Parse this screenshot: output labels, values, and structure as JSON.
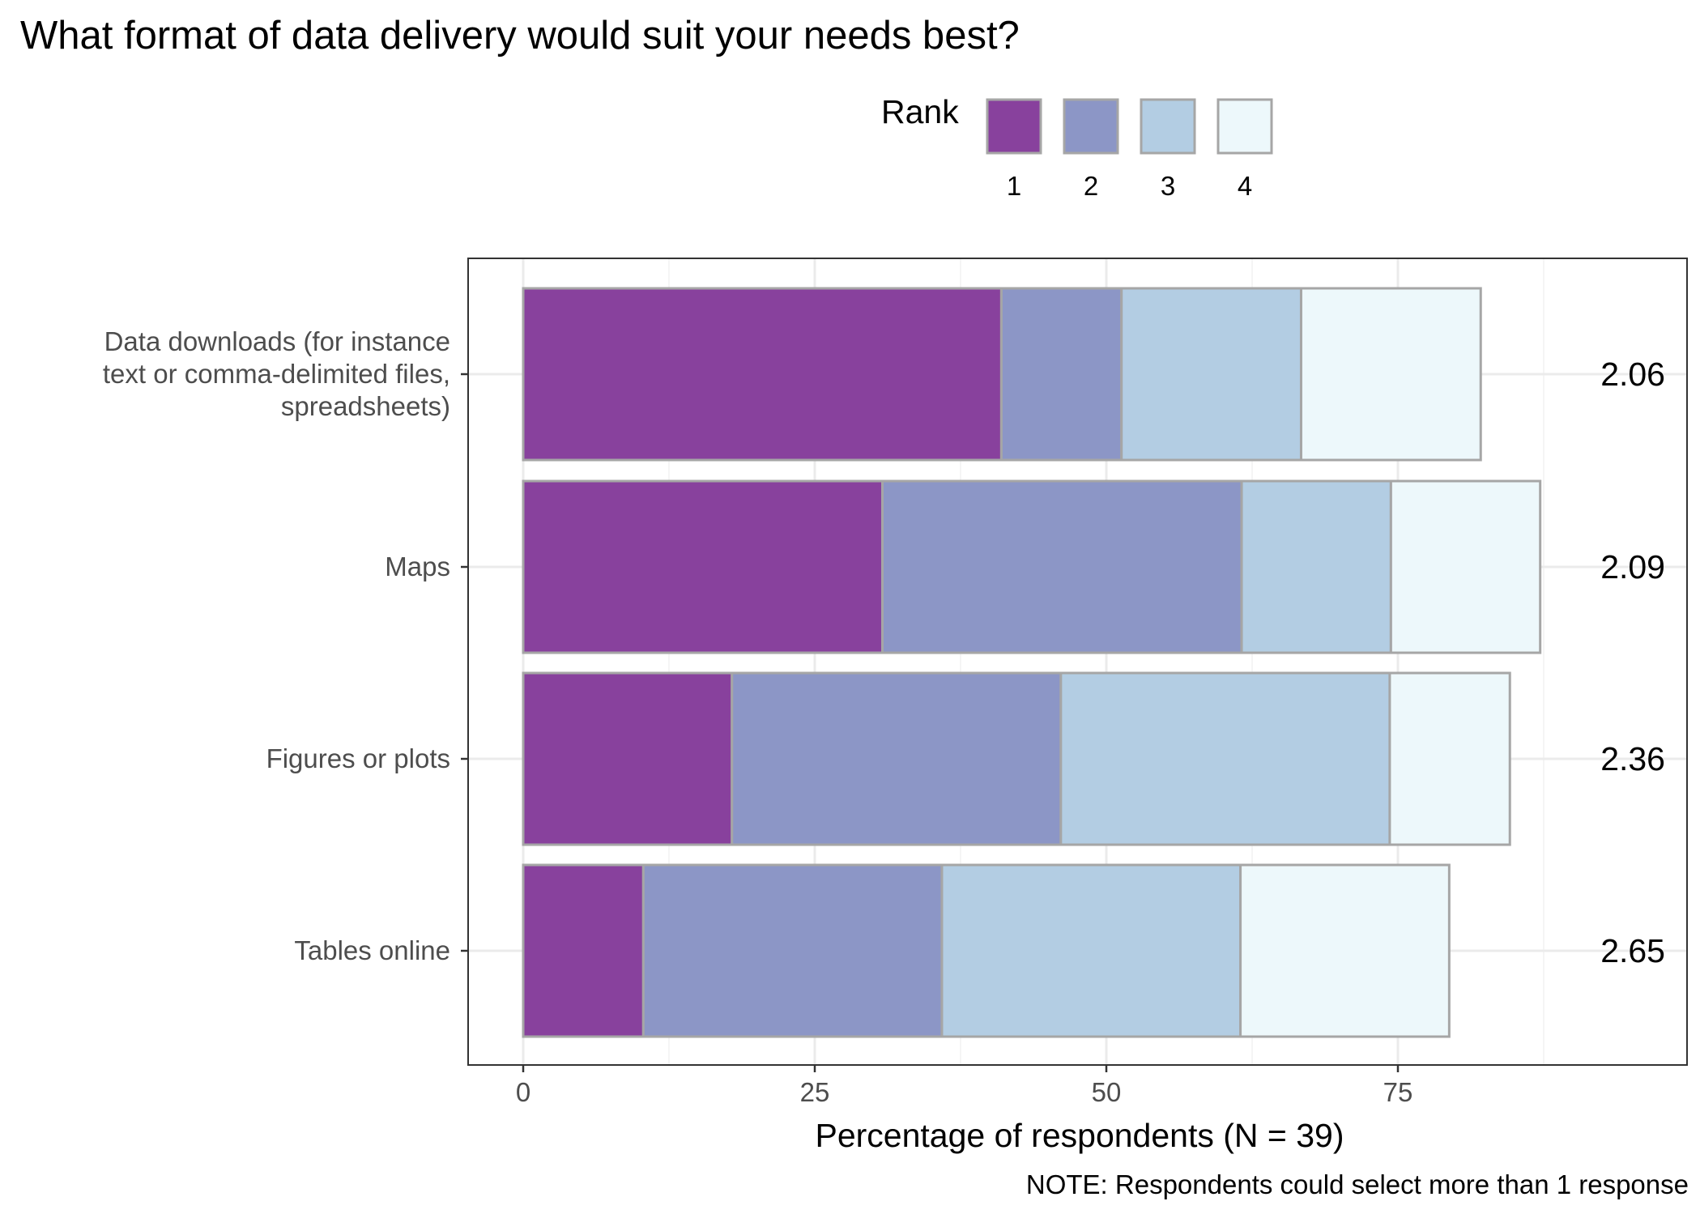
{
  "chart_data": {
    "type": "bar",
    "orientation": "horizontal",
    "stacked": true,
    "title": "What format of data delivery would suit your needs best?",
    "xlabel": "Percentage of respondents (N = 39)",
    "ylabel": "",
    "xlim": [
      -4.6,
      100.5
    ],
    "x_ticks": [
      0,
      25,
      50,
      75
    ],
    "x_tick_labels": [
      "0",
      "25",
      "50",
      "75"
    ],
    "grid": true,
    "note": "NOTE: Respondents could select more than 1 response",
    "legend": {
      "title": "Rank",
      "position": "top",
      "entries": [
        "1",
        "2",
        "3",
        "4"
      ]
    },
    "colors": [
      "#88419d",
      "#8c96c6",
      "#b3cde3",
      "#edf8fb"
    ],
    "bar_border_color": "#a6a6a6",
    "categories": [
      "Data downloads (for instance\ntext or comma-delimited files,\nspreadsheets)",
      "Maps",
      "Figures or plots",
      "Tables online"
    ],
    "series": [
      {
        "name": "1",
        "values": [
          41.0,
          30.8,
          17.9,
          10.3
        ]
      },
      {
        "name": "2",
        "values": [
          10.3,
          30.8,
          28.2,
          25.6
        ]
      },
      {
        "name": "3",
        "values": [
          15.4,
          12.8,
          28.2,
          25.6
        ]
      },
      {
        "name": "4",
        "values": [
          15.4,
          12.8,
          10.3,
          17.9
        ]
      }
    ],
    "mean_ranks": [
      "2.06",
      "2.09",
      "2.36",
      "2.65"
    ]
  }
}
